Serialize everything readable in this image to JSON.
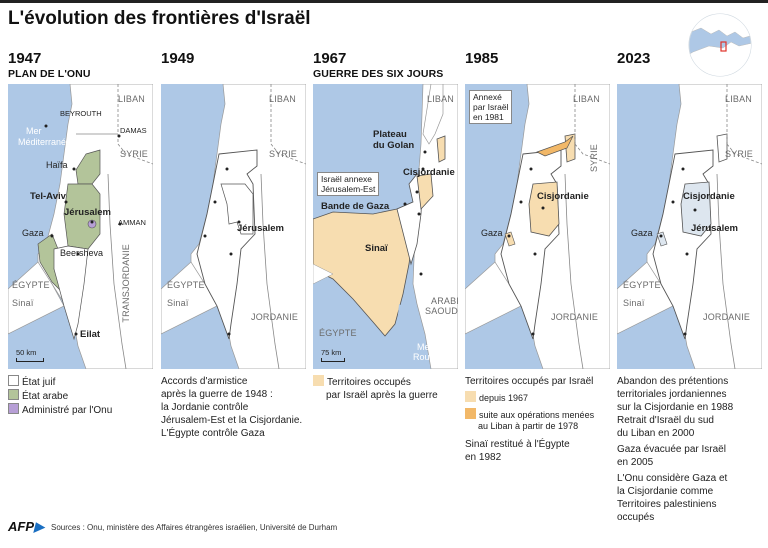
{
  "title": "L'évolution des frontières d'Israël",
  "colors": {
    "sea": "#aec8e6",
    "land": "#ffffff",
    "border": "#555555",
    "etat_juif": "#ffffff",
    "etat_arabe": "#b3c49a",
    "onu": "#b79fd6",
    "occupe_1967": "#f7ddb0",
    "occupe_liban": "#f2b868",
    "territoires_palestiniens": "#dde6ef"
  },
  "panels": [
    {
      "year": "1947",
      "subtitle": "PLAN DE L'ONU",
      "labels": {
        "liban": "LIBAN",
        "syrie": "SYRIE",
        "mer": "Mer",
        "mediterranee": "Méditerranée",
        "beyrouth": "BEYROUTH",
        "damas": "DAMAS",
        "haifa": "Haïfa",
        "telaviv": "Tel-Aviv",
        "jerusalem": "Jérusalem",
        "gaza": "Gaza",
        "amman": "AMMAN",
        "beersheva": "Beersheva",
        "egypte": "ÉGYPTE",
        "sinai": "Sinaï",
        "transjordanie": "TRANSJORDANIE",
        "eilat": "Eilat",
        "scale": "50 km"
      },
      "legend": [
        {
          "label": "État juif",
          "swatch": "etat_juif"
        },
        {
          "label": "État arabe",
          "swatch": "etat_arabe"
        },
        {
          "label": "Administré par l'Onu",
          "swatch": "onu"
        }
      ]
    },
    {
      "year": "1949",
      "subtitle": "",
      "labels": {
        "liban": "LIBAN",
        "syrie": "SYRIE",
        "jerusalem": "Jérusalem",
        "egypte": "ÉGYPTE",
        "sinai": "Sinaï",
        "jordanie": "JORDANIE"
      },
      "note_lines": [
        "Accords d'armistice",
        "après la guerre de 1948 :",
        "la Jordanie contrôle",
        "Jérusalem-Est et la Cisjordanie.",
        "L'Égypte contrôle Gaza"
      ]
    },
    {
      "year": "1967",
      "subtitle": "GUERRE DES SIX JOURS",
      "labels": {
        "liban": "LIBAN",
        "plateau": "Plateau",
        "golan": "du Golan",
        "cisjordanie": "Cisjordanie",
        "annexe1": "Israël annexe",
        "annexe2": "Jérusalem-Est",
        "bande_gaza": "Bande de Gaza",
        "sinai": "Sinaï",
        "egypte": "ÉGYPTE",
        "arabie1": "ARABIE",
        "arabie2": "SAOUDITE",
        "mer": "Mer",
        "rouge": "Rouge",
        "scale": "75 km"
      },
      "legend": [
        {
          "label1": "Territoires occupés",
          "label2": "par Israël après la guerre",
          "swatch": "occupe_1967"
        }
      ]
    },
    {
      "year": "1985",
      "subtitle": "",
      "labels": {
        "liban": "LIBAN",
        "syrie": "SYRIE",
        "annexe1": "Annexé",
        "annexe2": "par Israël",
        "annexe3": "en 1981",
        "cisjordanie": "Cisjordanie",
        "gaza": "Gaza",
        "jordanie": "JORDANIE"
      },
      "legend_title": "Territoires occupés par Israël",
      "legend": [
        {
          "label1": "depuis 1967",
          "label2": "",
          "swatch": "occupe_1967"
        },
        {
          "label1": "suite aux opérations menées",
          "label2": "au Liban à partir de 1978",
          "swatch": "occupe_liban"
        }
      ],
      "note_lines": [
        "Sinaï restitué à l'Égypte",
        "en 1982"
      ]
    },
    {
      "year": "2023",
      "subtitle": "",
      "labels": {
        "liban": "LIBAN",
        "syrie": "SYRIE",
        "cisjordanie": "Cisjordanie",
        "gaza": "Gaza",
        "jerusalem": "Jérusalem",
        "egypte": "ÉGYPTE",
        "sinai": "Sinaï",
        "jordanie": "JORDANIE"
      },
      "note_lines": [
        "Abandon des prétentions",
        "territoriales jordaniennes",
        "sur la Cisjordanie en 1988",
        "Retrait d'Israël du sud",
        "du Liban en 2000",
        "Gaza évacuée par Israël",
        "en 2005",
        "L'Onu considère Gaza et",
        "la Cisjordanie comme",
        "Territoires palestiniens",
        "occupés"
      ]
    }
  ],
  "footer": {
    "brand": "AFP",
    "sources": "Sources : Onu, ministère des Affaires étrangères israélien, Université de Durham"
  }
}
